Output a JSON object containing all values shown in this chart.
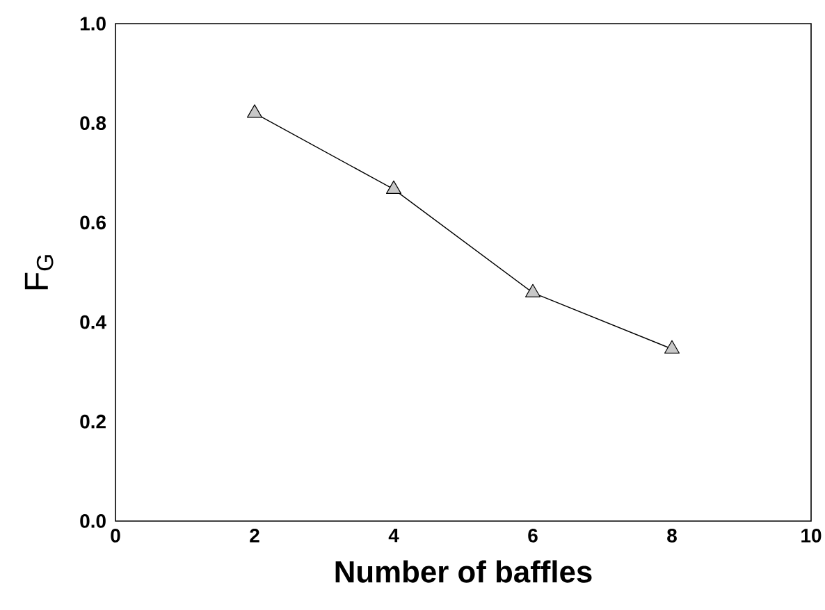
{
  "chart_data": {
    "type": "line",
    "xlabel": "Number of baffles",
    "ylabel": "F$_{G}$",
    "x": [
      2,
      4,
      6,
      8
    ],
    "series": [
      {
        "color": "#c8c8c8",
        "values": [
          0.82,
          0.667,
          0.459,
          0.346
        ]
      }
    ],
    "xlim": [
      0,
      10
    ],
    "ylim": [
      0.0,
      1.0
    ],
    "xticks": [
      0,
      2,
      4,
      6,
      8,
      10
    ],
    "yticks": [
      {
        "value": 0,
        "label": "0.0"
      },
      {
        "value": 0.2,
        "label": "0.2"
      },
      {
        "value": 0.4,
        "label": "0.4"
      },
      {
        "value": 0.6,
        "label": "0.6"
      },
      {
        "value": 0.8,
        "label": "0.8"
      },
      {
        "value": 1.0,
        "label": "1.0"
      }
    ],
    "marker": "triangle",
    "grid": false
  }
}
